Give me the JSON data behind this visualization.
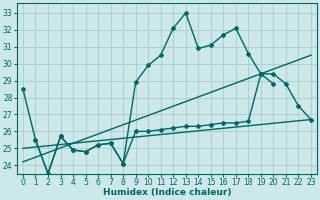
{
  "xlabel": "Humidex (Indice chaleur)",
  "bg_color": "#cce8e8",
  "grid_color": "#aacccc",
  "line_color": "#006666",
  "xlim": [
    -0.5,
    23.5
  ],
  "ylim": [
    23.5,
    33.6
  ],
  "yticks": [
    24,
    25,
    26,
    27,
    28,
    29,
    30,
    31,
    32,
    33
  ],
  "xticks": [
    0,
    1,
    2,
    3,
    4,
    5,
    6,
    7,
    8,
    9,
    10,
    11,
    12,
    13,
    14,
    15,
    16,
    17,
    18,
    19,
    20,
    21,
    22,
    23
  ],
  "line1_x": [
    0,
    1,
    2,
    3,
    4,
    5,
    6,
    7,
    8,
    9,
    10,
    11,
    12,
    13,
    14,
    15,
    16,
    17,
    18,
    19,
    20
  ],
  "line1_y": [
    28.5,
    25.5,
    23.5,
    25.7,
    24.9,
    24.8,
    25.2,
    25.3,
    24.1,
    28.9,
    29.9,
    30.5,
    32.1,
    33.0,
    30.9,
    31.1,
    31.7,
    32.1,
    30.6,
    29.4,
    28.8
  ],
  "line2_x": [
    1,
    2,
    3,
    4,
    5,
    6,
    7,
    8,
    9,
    10,
    11,
    12,
    13,
    14,
    15,
    16,
    17,
    18,
    19,
    20,
    21,
    22,
    23
  ],
  "line2_y": [
    25.5,
    23.5,
    25.7,
    24.9,
    24.8,
    25.2,
    25.3,
    24.1,
    26.0,
    26.0,
    26.1,
    26.2,
    26.3,
    26.3,
    26.4,
    26.5,
    26.5,
    26.6,
    29.4,
    29.4,
    28.8,
    27.5,
    26.7
  ],
  "line3_x": [
    0,
    23
  ],
  "line3_y": [
    25.0,
    26.7
  ],
  "line4_x": [
    0,
    23
  ],
  "line4_y": [
    24.2,
    30.5
  ]
}
